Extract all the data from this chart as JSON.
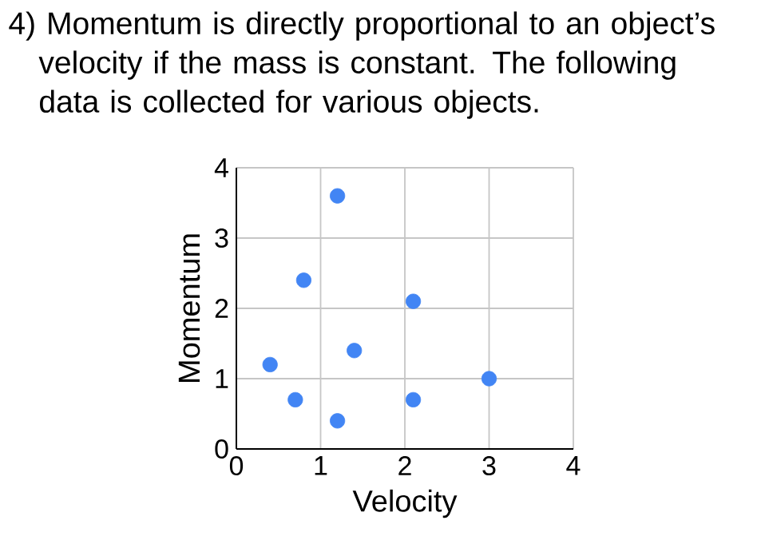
{
  "chart_data": {
    "type": "scatter",
    "title": "4) Momentum is directly proportional to an object’s velocity if the mass is constant.  The following data is collected for various objects.",
    "xlabel": "Velocity",
    "ylabel": "Momentum",
    "series": [
      {
        "color": "#4285f4",
        "x": [
          1.2,
          0.8,
          2.1,
          1.4,
          0.4,
          3.0,
          0.7,
          2.1,
          1.2
        ],
        "values": [
          3.6,
          2.4,
          2.1,
          1.4,
          1.2,
          1.0,
          0.7,
          0.7,
          0.4
        ]
      }
    ],
    "xlim": [
      0,
      4
    ],
    "ylim": [
      0,
      4
    ],
    "xticks": [
      0,
      1,
      2,
      3,
      4
    ],
    "yticks": [
      0,
      1,
      2,
      3,
      4
    ],
    "grid": true
  }
}
